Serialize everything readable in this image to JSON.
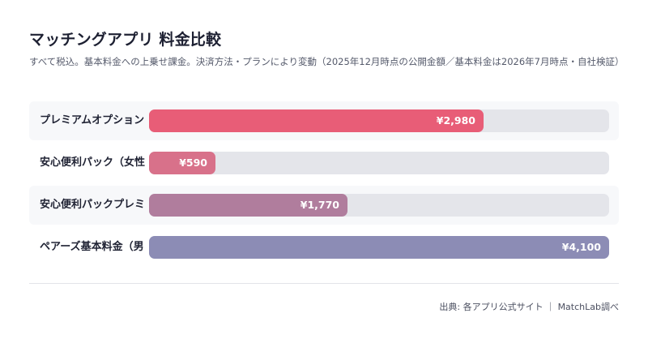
{
  "header": {
    "title": "マッチングアプリ 料金比較",
    "subtitle": "すべて税込。基本料金への上乗せ課金。決済方法・プランにより変動（2025年12月時点の公開金額／基本料金は2026年7月時点・自社検証）"
  },
  "footer": {
    "source": "出典: 各アプリ公式サイト ｜ MatchLab調べ"
  },
  "colors": {
    "track": "#e4e5ea",
    "row_shade": "#f7f8fa",
    "bars": [
      "#e85d77",
      "#d8718a",
      "#b07d9d",
      "#8c8cb5"
    ]
  },
  "chart_data": {
    "type": "bar",
    "orientation": "horizontal",
    "title": "マッチングアプリ 料金比較",
    "categories": [
      "プレミアムオプション",
      "安心便利パック（女性",
      "安心便利パックプレミ",
      "ペアーズ基本料金（男"
    ],
    "values": [
      2980,
      590,
      1770,
      4100
    ],
    "value_labels": [
      "¥2,980",
      "¥590",
      "¥1,770",
      "¥4,100"
    ],
    "xlim": [
      0,
      4100
    ],
    "grid": false,
    "legend": "none"
  }
}
